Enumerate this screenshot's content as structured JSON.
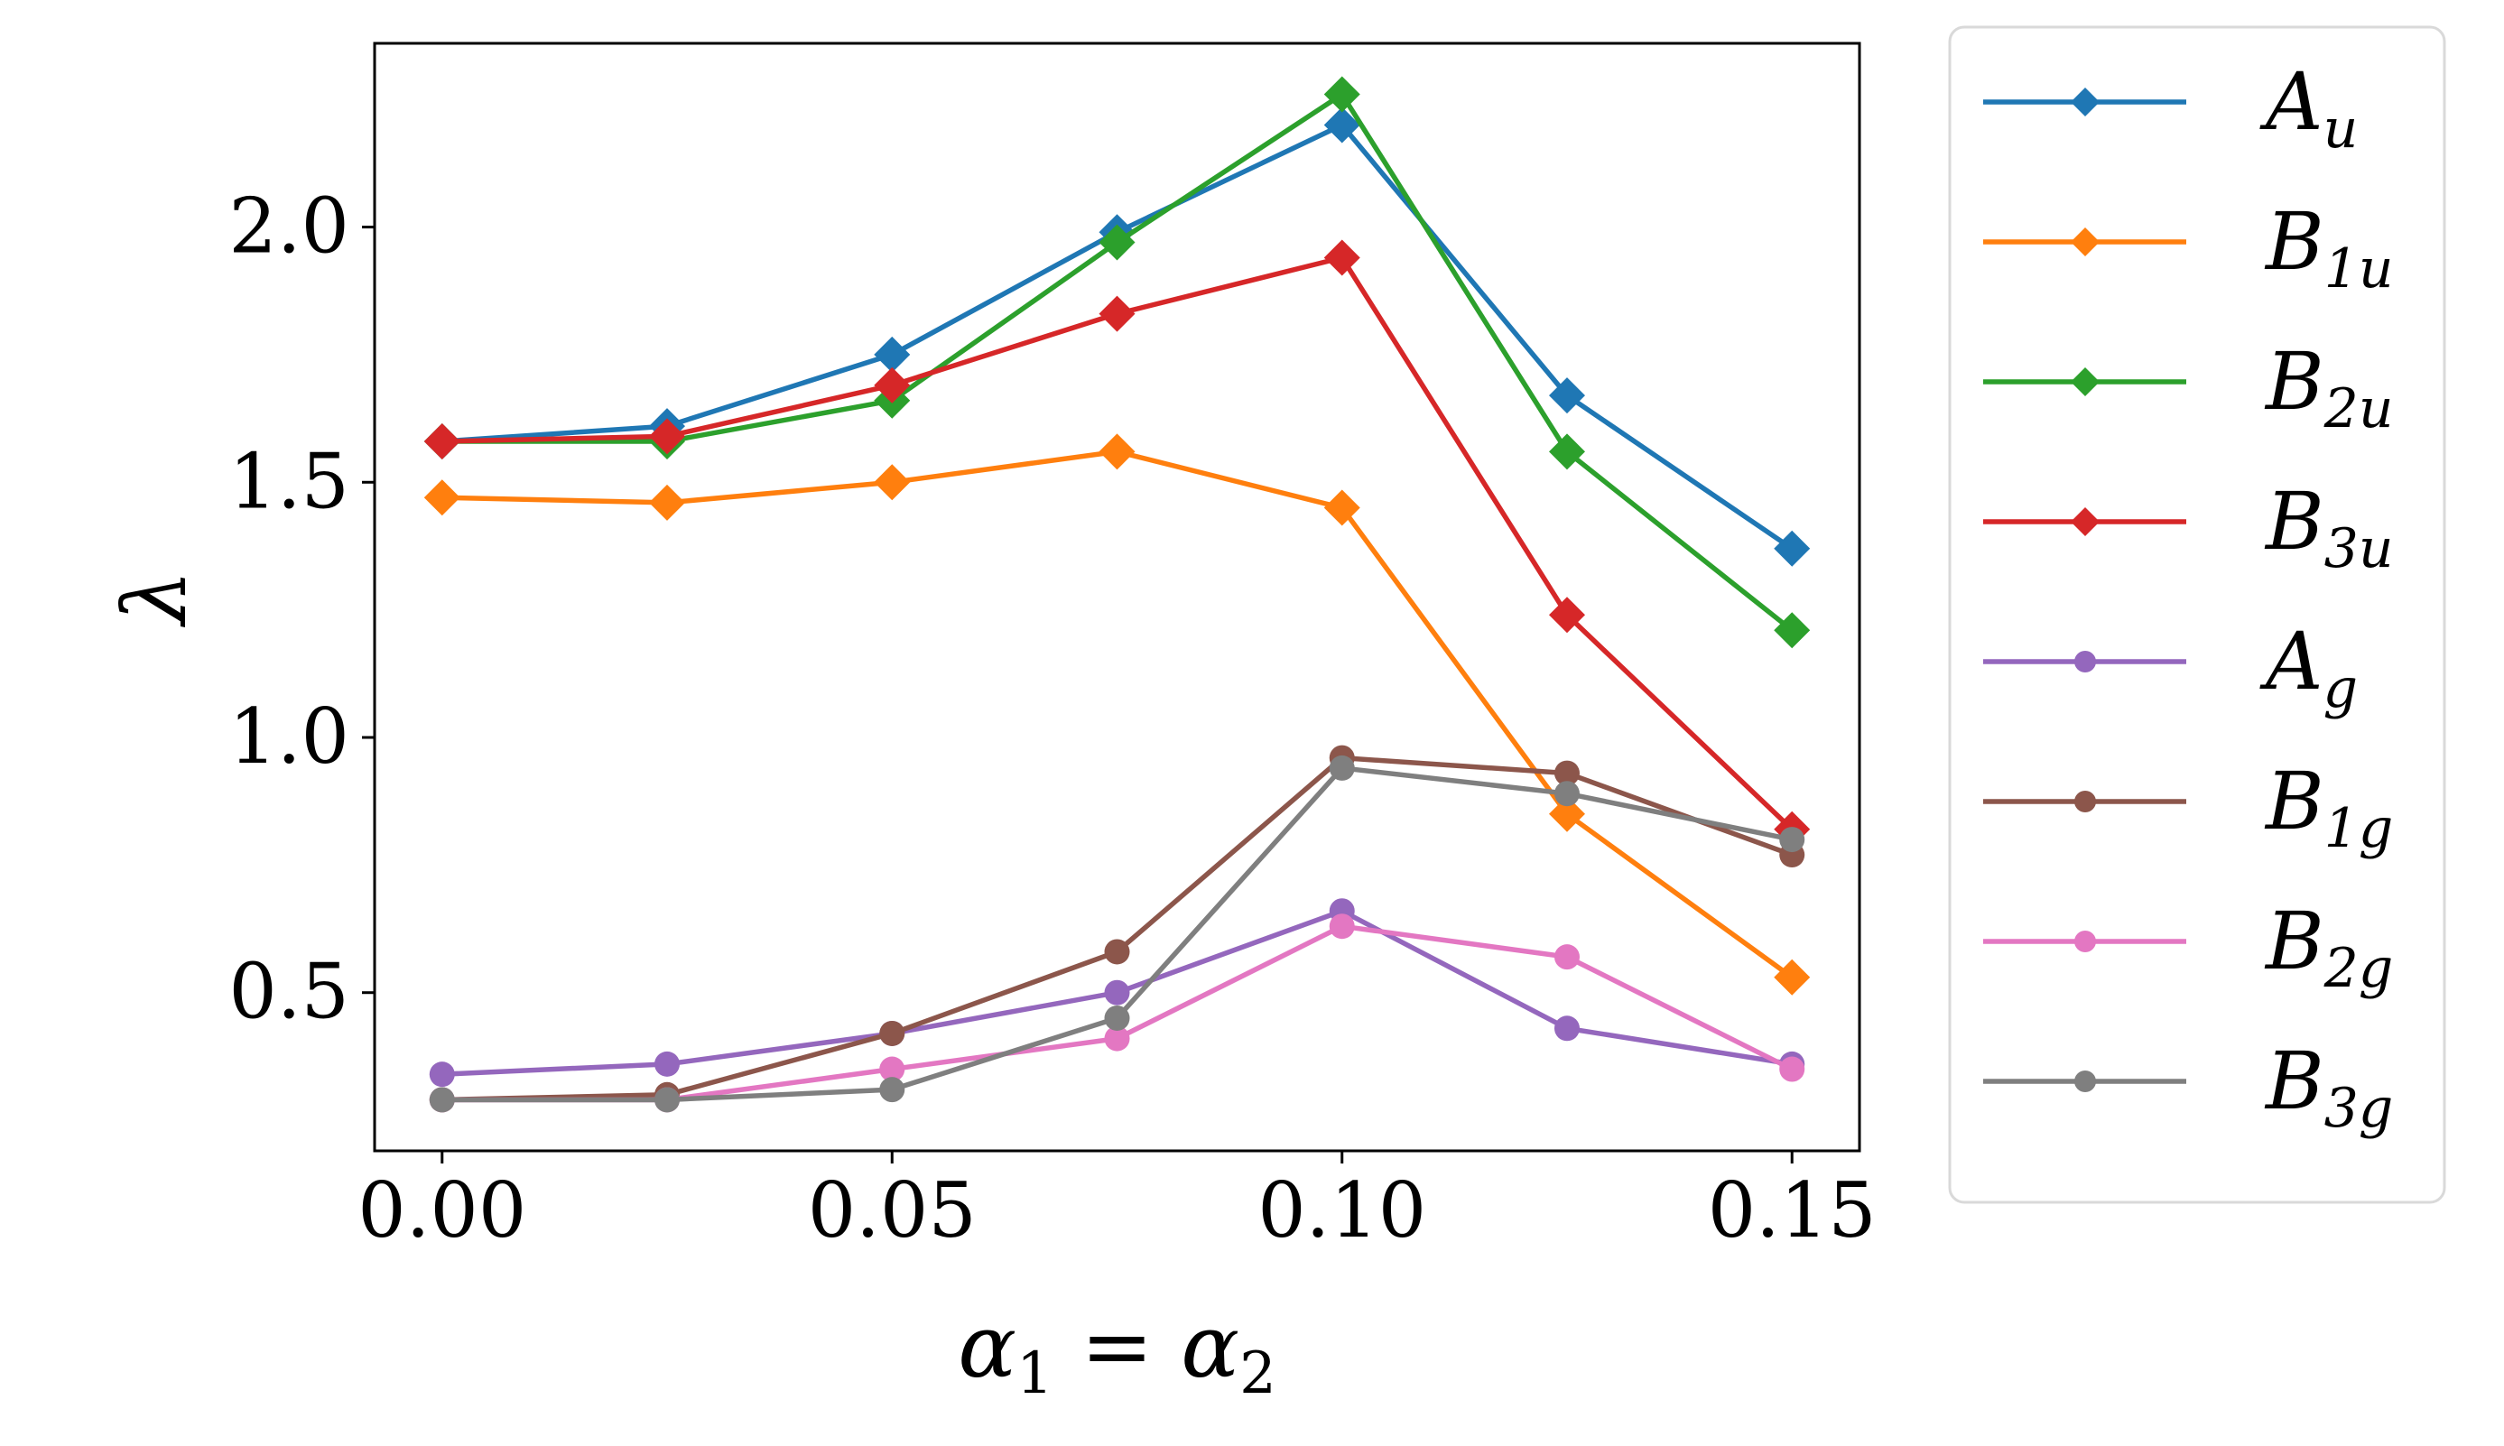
{
  "chart_data": {
    "type": "line",
    "title": "",
    "xlabel": "α1 = α2",
    "xlabel_parts": {
      "var": "α",
      "sub1": "1",
      "eq": " = ",
      "sub2": "2"
    },
    "ylabel": "λ",
    "x": [
      0.0,
      0.025,
      0.05,
      0.075,
      0.1,
      0.125,
      0.15
    ],
    "xlim": [
      -0.0075,
      0.1575
    ],
    "ylim": [
      0.19,
      2.36
    ],
    "xticks": [
      {
        "value": 0.0,
        "label": "0.00"
      },
      {
        "value": 0.05,
        "label": "0.05"
      },
      {
        "value": 0.1,
        "label": "0.10"
      },
      {
        "value": 0.15,
        "label": "0.15"
      }
    ],
    "yticks": [
      {
        "value": 0.5,
        "label": "0.5"
      },
      {
        "value": 1.0,
        "label": "1.0"
      },
      {
        "value": 1.5,
        "label": "1.5"
      },
      {
        "value": 2.0,
        "label": "2.0"
      }
    ],
    "grid": false,
    "legend_position": "outside-right",
    "series": [
      {
        "name": "A_u",
        "main": "A",
        "sub": "u",
        "color": "#1f77b4",
        "marker": "diamond",
        "values": [
          1.58,
          1.61,
          1.75,
          1.99,
          2.2,
          1.67,
          1.37
        ]
      },
      {
        "name": "B_1u",
        "main": "B",
        "sub": "1u",
        "color": "#ff7f0e",
        "marker": "diamond",
        "values": [
          1.47,
          1.46,
          1.5,
          1.56,
          1.45,
          0.85,
          0.53
        ]
      },
      {
        "name": "B_2u",
        "main": "B",
        "sub": "2u",
        "color": "#2ca02c",
        "marker": "diamond",
        "values": [
          1.58,
          1.58,
          1.66,
          1.97,
          2.26,
          1.56,
          1.21
        ]
      },
      {
        "name": "B_3u",
        "main": "B",
        "sub": "3u",
        "color": "#d62728",
        "marker": "diamond",
        "values": [
          1.58,
          1.59,
          1.69,
          1.83,
          1.94,
          1.24,
          0.82
        ]
      },
      {
        "name": "A_g",
        "main": "A",
        "sub": "g",
        "color": "#9467bd",
        "marker": "circle",
        "values": [
          0.34,
          0.36,
          0.42,
          0.5,
          0.66,
          0.43,
          0.36
        ]
      },
      {
        "name": "B_1g",
        "main": "B",
        "sub": "1g",
        "color": "#8c564b",
        "marker": "circle",
        "values": [
          0.29,
          0.3,
          0.42,
          0.58,
          0.96,
          0.93,
          0.77
        ]
      },
      {
        "name": "B_2g",
        "main": "B",
        "sub": "2g",
        "color": "#e377c2",
        "marker": "circle",
        "values": [
          0.29,
          0.29,
          0.35,
          0.41,
          0.63,
          0.57,
          0.35
        ]
      },
      {
        "name": "B_3g",
        "main": "B",
        "sub": "3g",
        "color": "#7f7f7f",
        "marker": "circle",
        "values": [
          0.29,
          0.29,
          0.31,
          0.45,
          0.94,
          0.89,
          0.8
        ]
      }
    ]
  }
}
